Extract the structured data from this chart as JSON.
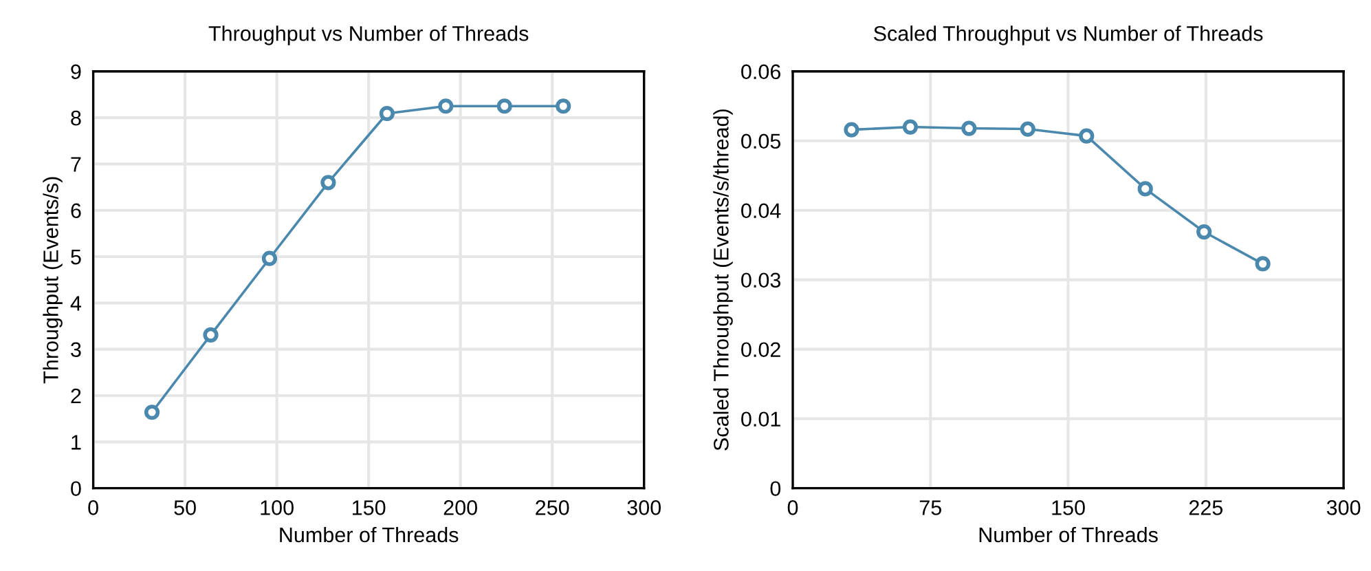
{
  "chart_data": [
    {
      "type": "line",
      "title": "Throughput vs Number of Threads",
      "xlabel": "Number of Threads",
      "ylabel": "Throughput (Events/s)",
      "x": [
        32,
        64,
        96,
        128,
        160,
        192,
        224,
        256
      ],
      "series": [
        {
          "color": "#4a88ad",
          "values": [
            1.64,
            3.31,
            4.96,
            6.6,
            8.09,
            8.25,
            8.25,
            8.25
          ]
        }
      ],
      "xlim": [
        0,
        300
      ],
      "xticks": [
        0,
        50,
        100,
        150,
        200,
        250,
        300
      ],
      "ylim": [
        0,
        9
      ],
      "yticks": [
        0,
        1,
        2,
        3,
        4,
        5,
        6,
        7,
        8,
        9
      ],
      "grid": true,
      "marker": "circle",
      "line_style": "solid"
    },
    {
      "type": "line",
      "title": "Scaled Throughput vs Number of Threads",
      "xlabel": "Number of Threads",
      "ylabel": "Scaled Throughput (Events/s/thread)",
      "x": [
        32,
        64,
        96,
        128,
        160,
        192,
        224,
        256
      ],
      "series": [
        {
          "color": "#4a88ad",
          "values": [
            0.0516,
            0.052,
            0.0518,
            0.0517,
            0.0507,
            0.0431,
            0.0369,
            0.0323
          ]
        }
      ],
      "xlim": [
        0,
        300
      ],
      "xticks": [
        0,
        75,
        150,
        225,
        300
      ],
      "ylim": [
        0,
        0.06
      ],
      "yticks": [
        {
          "value": 0,
          "label": "0"
        },
        0.01,
        0.02,
        0.03,
        0.04,
        0.05,
        0.06
      ],
      "grid": true,
      "marker": "circle",
      "line_style": "solid"
    }
  ]
}
